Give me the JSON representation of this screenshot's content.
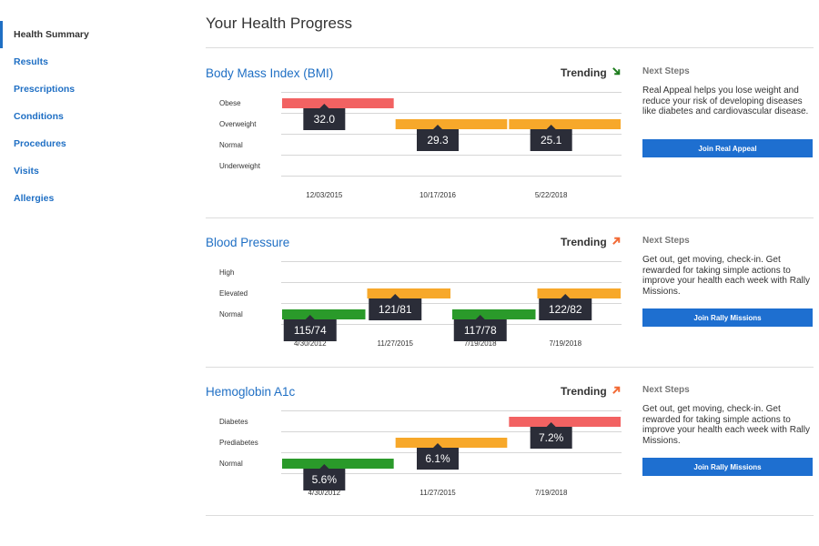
{
  "sidebar": {
    "items": [
      {
        "label": "Health Summary",
        "active": true
      },
      {
        "label": "Results"
      },
      {
        "label": "Prescriptions"
      },
      {
        "label": "Conditions"
      },
      {
        "label": "Procedures"
      },
      {
        "label": "Visits"
      },
      {
        "label": "Allergies"
      }
    ]
  },
  "page": {
    "title": "Your Health Progress"
  },
  "colors": {
    "accent": "#1f6fc4",
    "button": "#1e6fd0",
    "red_band": "#f26262",
    "orange_band": "#f7a82a",
    "green_band": "#2a9a2a",
    "callout": "#2b2d38",
    "trend_down": "#1e7d1e",
    "trend_up": "#f26a35"
  },
  "sections": [
    {
      "title": "Body Mass Index (BMI)",
      "trend_label": "Trending",
      "trend_icon": "arrow-down-right-icon",
      "trend_color": "#1e7d1e",
      "next_steps": {
        "heading": "Next Steps",
        "text": "Real Appeal helps you lose weight and reduce your risk of developing diseases like diabetes and cardiovascular disease.",
        "button": "Join Real Appeal"
      }
    },
    {
      "title": "Blood Pressure",
      "trend_label": "Trending",
      "trend_icon": "arrow-up-right-icon",
      "trend_color": "#f26a35",
      "next_steps": {
        "heading": "Next Steps",
        "text": "Get out, get moving, check-in. Get rewarded for taking simple actions to improve your health each week with Rally Missions.",
        "button": "Join Rally Missions"
      }
    },
    {
      "title": "Hemoglobin A1c",
      "trend_label": "Trending",
      "trend_icon": "arrow-up-right-icon",
      "trend_color": "#f26a35",
      "next_steps": {
        "heading": "Next Steps",
        "text": "Get out, get moving, check-in. Get rewarded for taking simple actions to improve your health each week with Rally Missions.",
        "button": "Join Rally Missions"
      }
    }
  ],
  "chart_data": [
    {
      "type": "bar",
      "title": "Body Mass Index (BMI)",
      "categories_y": [
        "Obese",
        "Overweight",
        "Normal",
        "Underweight"
      ],
      "points": [
        {
          "date": "12/03/2015",
          "value": "32.0",
          "category": "Obese",
          "color": "red"
        },
        {
          "date": "10/17/2016",
          "value": "29.3",
          "category": "Overweight",
          "color": "orange"
        },
        {
          "date": "5/22/2018",
          "value": "25.1",
          "category": "Overweight",
          "color": "orange"
        }
      ]
    },
    {
      "type": "bar",
      "title": "Blood Pressure",
      "categories_y": [
        "High",
        "Elevated",
        "Normal"
      ],
      "points": [
        {
          "date": "4/30/2012",
          "value": "115/74",
          "category": "Normal",
          "color": "green"
        },
        {
          "date": "11/27/2015",
          "value": "121/81",
          "category": "Elevated",
          "color": "orange"
        },
        {
          "date": "7/19/2018",
          "value": "117/78",
          "category": "Normal",
          "color": "green"
        },
        {
          "date": "7/19/2018",
          "value": "122/82",
          "category": "Elevated",
          "color": "orange"
        }
      ]
    },
    {
      "type": "bar",
      "title": "Hemoglobin A1c",
      "categories_y": [
        "Diabetes",
        "Prediabetes",
        "Normal"
      ],
      "points": [
        {
          "date": "4/30/2012",
          "value": "5.6%",
          "category": "Normal",
          "color": "green"
        },
        {
          "date": "11/27/2015",
          "value": "6.1%",
          "category": "Prediabetes",
          "color": "orange"
        },
        {
          "date": "7/19/2018",
          "value": "7.2%",
          "category": "Diabetes",
          "color": "red"
        }
      ]
    }
  ]
}
